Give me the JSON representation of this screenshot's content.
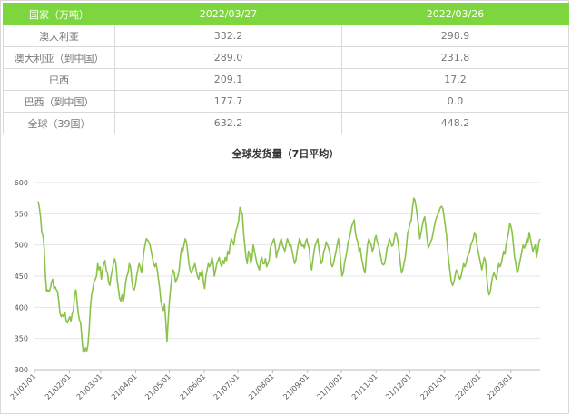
{
  "table": {
    "headers": [
      "国家（万吨）",
      "2022/03/27",
      "2022/03/26"
    ],
    "rows": [
      {
        "country": "澳大利亚",
        "v1": "332.2",
        "v2": "298.9"
      },
      {
        "country": "澳大利亚（到中国）",
        "v1": "289.0",
        "v2": "231.8"
      },
      {
        "country": "巴西",
        "v1": "209.1",
        "v2": "17.2"
      },
      {
        "country": "巴西（到中国）",
        "v1": "177.7",
        "v2": "0.0"
      },
      {
        "country": "全球（39国）",
        "v1": "632.2",
        "v2": "448.2"
      }
    ]
  },
  "colors": {
    "accent": "#7ed63f",
    "line": "#8bc34a",
    "grid": "#e6e6e6"
  },
  "chart_data": {
    "type": "line",
    "title": "全球发货量（7日平均）",
    "ylim": [
      300,
      600
    ],
    "yticks": [
      300,
      350,
      400,
      450,
      500,
      550,
      600
    ],
    "xticks": [
      "21/01/01",
      "21/02/01",
      "21/03/01",
      "21/04/01",
      "21/05/01",
      "21/06/01",
      "21/07/01",
      "21/08/01",
      "21/09/01",
      "21/10/01",
      "21/11/01",
      "21/12/01",
      "22/01/01",
      "22/02/01",
      "22/03/01"
    ],
    "x_start": "2021-01-01",
    "x_end": "2022-03-27",
    "series": [
      {
        "values": [
          570,
          560,
          545,
          520,
          515,
          495,
          450,
          425,
          428,
          425,
          430,
          440,
          445,
          430,
          433,
          428,
          425,
          410,
          390,
          385,
          388,
          385,
          392,
          380,
          375,
          380,
          385,
          378,
          390,
          395,
          420,
          428,
          410,
          390,
          380,
          375,
          350,
          330,
          328,
          335,
          330,
          340,
          365,
          400,
          420,
          430,
          440,
          445,
          450,
          470,
          460,
          465,
          445,
          460,
          470,
          475,
          460,
          455,
          440,
          435,
          450,
          460,
          470,
          478,
          470,
          445,
          430,
          415,
          410,
          420,
          408,
          420,
          440,
          450,
          455,
          470,
          465,
          445,
          430,
          428,
          435,
          450,
          460,
          470,
          465,
          455,
          470,
          490,
          500,
          510,
          508,
          505,
          500,
          490,
          480,
          470,
          465,
          470,
          460,
          445,
          430,
          410,
          400,
          395,
          405,
          378,
          345,
          380,
          410,
          430,
          450,
          460,
          455,
          440,
          445,
          450,
          460,
          480,
          495,
          490,
          500,
          510,
          505,
          490,
          470,
          460,
          455,
          460,
          465,
          470,
          460,
          450,
          445,
          455,
          450,
          460,
          440,
          430,
          450,
          460,
          470,
          465,
          470,
          480,
          470,
          450,
          460,
          470,
          475,
          480,
          470,
          465,
          475,
          470,
          480,
          475,
          490,
          485,
          500,
          510,
          505,
          500,
          515,
          525,
          530,
          540,
          560,
          555,
          550,
          520,
          500,
          480,
          470,
          490,
          485,
          470,
          480,
          500,
          490,
          480,
          470,
          465,
          460,
          475,
          480,
          470,
          470,
          478,
          465,
          470,
          475,
          495,
          500,
          505,
          510,
          500,
          480,
          490,
          495,
          505,
          510,
          500,
          495,
          490,
          500,
          510,
          505,
          498,
          500,
          490,
          480,
          470,
          475,
          490,
          500,
          510,
          505,
          498,
          500,
          495,
          505,
          510,
          500,
          495,
          470,
          460,
          475,
          490,
          500,
          505,
          510,
          495,
          480,
          470,
          475,
          490,
          495,
          505,
          500,
          495,
          488,
          470,
          465,
          470,
          480,
          490,
          500,
          510,
          495,
          470,
          450,
          455,
          470,
          480,
          490,
          505,
          510,
          520,
          530,
          535,
          540,
          520,
          510,
          505,
          490,
          495,
          480,
          470,
          460,
          455,
          480,
          500,
          510,
          505,
          500,
          490,
          495,
          510,
          515,
          505,
          500,
          490,
          480,
          470,
          468,
          470,
          480,
          495,
          500,
          510,
          505,
          498,
          500,
          510,
          520,
          515,
          505,
          490,
          470,
          455,
          460,
          470,
          480,
          498,
          520,
          525,
          535,
          540,
          560,
          575,
          572,
          560,
          545,
          530,
          510,
          520,
          530,
          540,
          545,
          530,
          510,
          495,
          500,
          505,
          510,
          520,
          530,
          540,
          545,
          550,
          555,
          560,
          562,
          558,
          545,
          530,
          515,
          490,
          470,
          455,
          440,
          435,
          440,
          450,
          460,
          455,
          450,
          445,
          450,
          460,
          470,
          465,
          470,
          480,
          485,
          490,
          500,
          505,
          510,
          520,
          515,
          500,
          490,
          480,
          470,
          460,
          470,
          480,
          475,
          450,
          430,
          420,
          425,
          440,
          450,
          455,
          450,
          445,
          460,
          470,
          465,
          470,
          480,
          490,
          485,
          500,
          510,
          520,
          535,
          530,
          520,
          500,
          480,
          470,
          455,
          460,
          470,
          480,
          490,
          500,
          495,
          500,
          510,
          505,
          520,
          510,
          500,
          490,
          495,
          500,
          480,
          490,
          505,
          510
        ]
      }
    ]
  }
}
